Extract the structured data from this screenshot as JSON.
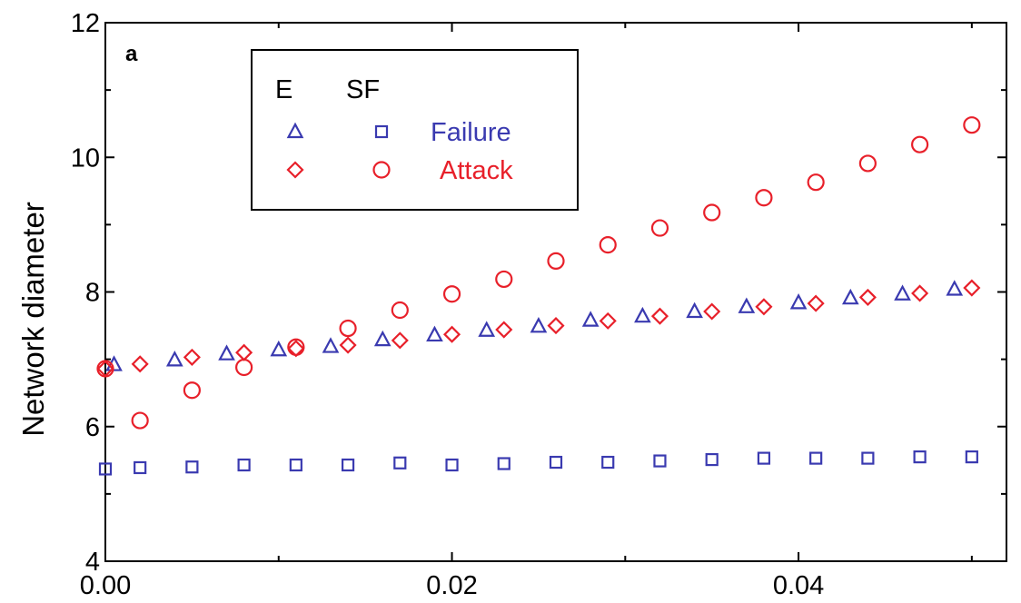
{
  "chart_data": {
    "type": "scatter",
    "panel_label": "a",
    "title": "",
    "xlabel": "",
    "ylabel": "Network diameter",
    "xlim": [
      0.0,
      0.052
    ],
    "ylim": [
      4,
      12
    ],
    "xticks": [
      0.0,
      0.02,
      0.04
    ],
    "xtick_labels": [
      "0.00",
      "0.02",
      "0.04"
    ],
    "yticks": [
      4,
      6,
      8,
      10,
      12
    ],
    "ytick_labels": [
      "4",
      "6",
      "8",
      "10",
      "12"
    ],
    "grid": false,
    "legend": {
      "placement": "top-left",
      "header_e": "E",
      "header_sf": "SF",
      "rows": [
        {
          "label": "Failure",
          "color": "#3a3ab0",
          "e_marker": "triangle",
          "sf_marker": "square"
        },
        {
          "label": "Attack",
          "color": "#e8202a",
          "e_marker": "diamond",
          "sf_marker": "circle"
        }
      ]
    },
    "series": [
      {
        "key": "e_failure",
        "marker": "triangle",
        "color": "#3a3ab0",
        "points": [
          [
            0.0005,
            6.92
          ],
          [
            0.004,
            6.99
          ],
          [
            0.007,
            7.08
          ],
          [
            0.01,
            7.14
          ],
          [
            0.013,
            7.19
          ],
          [
            0.016,
            7.29
          ],
          [
            0.019,
            7.36
          ],
          [
            0.022,
            7.43
          ],
          [
            0.025,
            7.49
          ],
          [
            0.028,
            7.58
          ],
          [
            0.031,
            7.64
          ],
          [
            0.034,
            7.71
          ],
          [
            0.037,
            7.78
          ],
          [
            0.04,
            7.84
          ],
          [
            0.043,
            7.91
          ],
          [
            0.046,
            7.97
          ],
          [
            0.049,
            8.04
          ]
        ]
      },
      {
        "key": "sf_failure",
        "marker": "square",
        "color": "#3a3ab0",
        "points": [
          [
            0.0,
            5.37
          ],
          [
            0.002,
            5.39
          ],
          [
            0.005,
            5.4
          ],
          [
            0.008,
            5.43
          ],
          [
            0.011,
            5.43
          ],
          [
            0.014,
            5.43
          ],
          [
            0.017,
            5.46
          ],
          [
            0.02,
            5.43
          ],
          [
            0.023,
            5.45
          ],
          [
            0.026,
            5.47
          ],
          [
            0.029,
            5.47
          ],
          [
            0.032,
            5.49
          ],
          [
            0.035,
            5.51
          ],
          [
            0.038,
            5.53
          ],
          [
            0.041,
            5.53
          ],
          [
            0.044,
            5.53
          ],
          [
            0.047,
            5.55
          ],
          [
            0.05,
            5.55
          ]
        ]
      },
      {
        "key": "e_attack",
        "marker": "diamond",
        "color": "#e8202a",
        "points": [
          [
            0.0,
            6.86
          ],
          [
            0.002,
            6.93
          ],
          [
            0.005,
            7.03
          ],
          [
            0.008,
            7.1
          ],
          [
            0.011,
            7.16
          ],
          [
            0.014,
            7.21
          ],
          [
            0.017,
            7.28
          ],
          [
            0.02,
            7.37
          ],
          [
            0.023,
            7.44
          ],
          [
            0.026,
            7.5
          ],
          [
            0.029,
            7.57
          ],
          [
            0.032,
            7.64
          ],
          [
            0.035,
            7.71
          ],
          [
            0.038,
            7.78
          ],
          [
            0.041,
            7.83
          ],
          [
            0.044,
            7.92
          ],
          [
            0.047,
            7.98
          ],
          [
            0.05,
            8.06
          ]
        ]
      },
      {
        "key": "sf_attack",
        "marker": "circle",
        "color": "#e8202a",
        "points": [
          [
            0.0,
            6.86
          ],
          [
            0.002,
            6.09
          ],
          [
            0.005,
            6.54
          ],
          [
            0.008,
            6.88
          ],
          [
            0.011,
            7.18
          ],
          [
            0.014,
            7.46
          ],
          [
            0.017,
            7.73
          ],
          [
            0.02,
            7.97
          ],
          [
            0.023,
            8.19
          ],
          [
            0.026,
            8.46
          ],
          [
            0.029,
            8.7
          ],
          [
            0.032,
            8.95
          ],
          [
            0.035,
            9.18
          ],
          [
            0.038,
            9.4
          ],
          [
            0.041,
            9.63
          ],
          [
            0.044,
            9.91
          ],
          [
            0.047,
            10.19
          ],
          [
            0.05,
            10.48
          ]
        ]
      }
    ]
  }
}
